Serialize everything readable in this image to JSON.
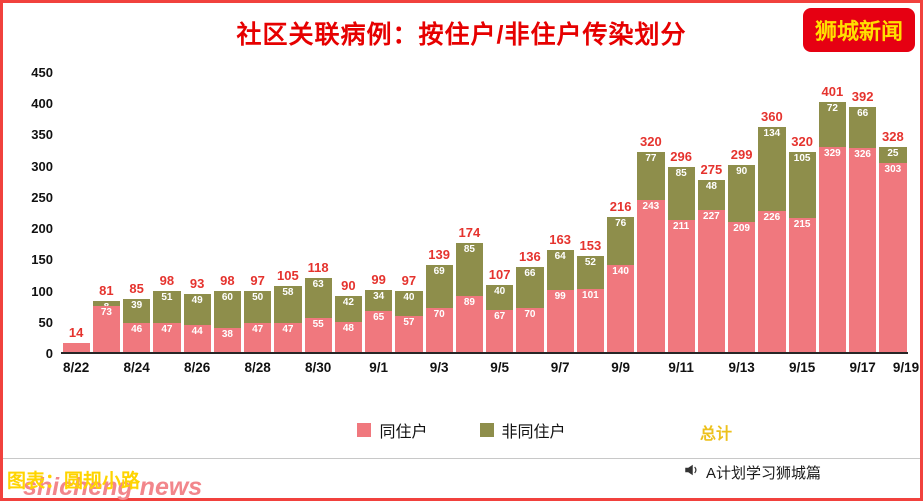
{
  "header": {
    "title": "社区关联病例：按住户/非住户传染划分",
    "badge": "狮城新闻"
  },
  "chart_data": {
    "type": "bar",
    "stacked": true,
    "title": "社区关联病例：按住户/非住户传染划分",
    "n_bars": 28,
    "x_tick_labels": [
      "8/22",
      "8/24",
      "8/26",
      "8/28",
      "8/30",
      "9/1",
      "9/3",
      "9/5",
      "9/7",
      "9/9",
      "9/11",
      "9/13",
      "9/15",
      "9/17",
      "9/19"
    ],
    "y_ticks": [
      0,
      50,
      100,
      150,
      200,
      250,
      300,
      350,
      400,
      450
    ],
    "ylim": [
      0,
      450
    ],
    "grid": false,
    "legend_position": "bottom",
    "series": [
      {
        "name": "同住户",
        "color": "#f0787e",
        "values": [
          14,
          73,
          46,
          47,
          44,
          38,
          47,
          47,
          55,
          48,
          65,
          57,
          70,
          89,
          67,
          70,
          99,
          101,
          140,
          243,
          211,
          227,
          209,
          226,
          215,
          329,
          326,
          303
        ]
      },
      {
        "name": "非同住户",
        "color": "#8e8e4b",
        "values": [
          0,
          8,
          39,
          51,
          49,
          60,
          50,
          58,
          63,
          42,
          34,
          40,
          69,
          85,
          40,
          66,
          64,
          52,
          76,
          77,
          85,
          48,
          90,
          134,
          105,
          72,
          66,
          25
        ]
      }
    ],
    "totals": [
      14,
      81,
      85,
      98,
      93,
      98,
      97,
      105,
      118,
      90,
      99,
      97,
      139,
      174,
      107,
      136,
      163,
      153,
      216,
      320,
      296,
      275,
      299,
      360,
      320,
      401,
      392,
      328
    ],
    "total_label": "总计"
  },
  "colors": {
    "title": "#e60000",
    "badge_bg": "#e60012",
    "badge_text": "#ffdf00",
    "household": "#f0787e",
    "non_household": "#8e8e4b",
    "total_label": "#e5332e",
    "total_word": "#edc11c",
    "watermark_pink": "#f2868b",
    "watermark_yellow": "#ffd400",
    "border": "#f1413d"
  },
  "footer": {
    "credit": "A计划学习狮城篇",
    "watermark_pink": "shicheng news",
    "watermark_yellow": "图表：圆规小路"
  }
}
